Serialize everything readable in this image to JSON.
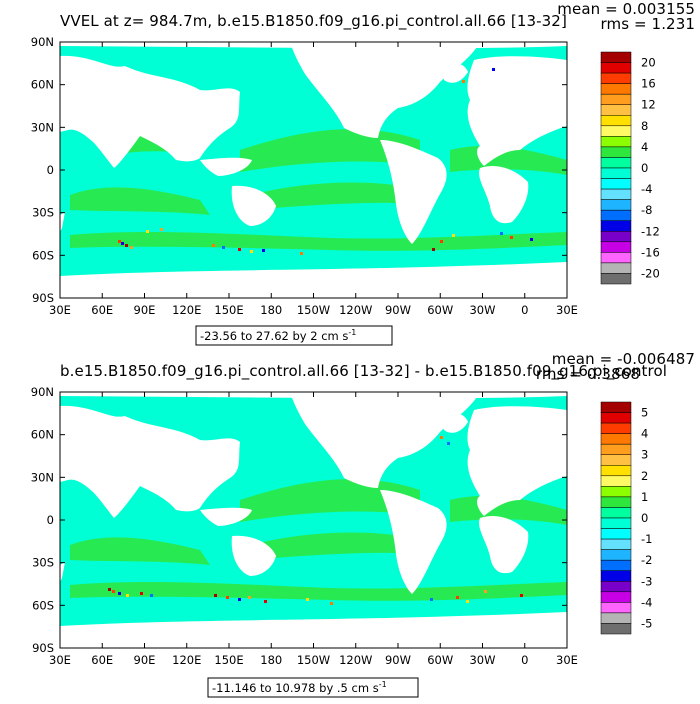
{
  "chart_data": [
    {
      "type": "heatmap",
      "title": "VVEL at z= 984.7m, b.e15.B1850.f09_g16.pi_control.all.66 [13-32]",
      "stats": {
        "mean": "mean = 0.003155",
        "rms": "rms = 1.231"
      },
      "range_label": "-23.56 to 27.62 by 2 cm s",
      "range_unit_exp": "-1",
      "x_ticks": [
        "30E",
        "60E",
        "90E",
        "120E",
        "150E",
        "180",
        "150W",
        "120W",
        "90W",
        "60W",
        "30W",
        "0",
        "30E"
      ],
      "y_ticks": [
        "90N",
        "60N",
        "30N",
        "0",
        "30S",
        "60S",
        "90S"
      ],
      "colorbar": {
        "labels": [
          "20",
          "16",
          "12",
          "8",
          "4",
          "0",
          "-4",
          "-8",
          "-12",
          "-16",
          "-20"
        ],
        "colors": [
          "#a50000",
          "#e10000",
          "#ff3c00",
          "#ff7800",
          "#ff9e1e",
          "#ffc043",
          "#ffe000",
          "#fffa64",
          "#8cff00",
          "#2ee63c",
          "#00ff9e",
          "#00ffd4",
          "#00ffff",
          "#64e1ff",
          "#1eb4ff",
          "#006eff",
          "#0000e6",
          "#7800c8",
          "#c800e6",
          "#ff64ff",
          "#b4b4b4",
          "#6e6e6e"
        ]
      },
      "fill": {
        "land": "#ffffff",
        "ocean_dominant": "#00ffd4",
        "ocean_secondary": "#2ee63c"
      }
    },
    {
      "type": "heatmap",
      "title": "b.e15.B1850.f09_g16.pi_control.all.66 [13-32] - b.e15.B1850.f09_g16.pi_control",
      "stats": {
        "mean": "mean = -0.006487",
        "rms": "rms = 0.3868"
      },
      "range_label": "-11.146 to 10.978 by .5 cm s",
      "range_unit_exp": "-1",
      "x_ticks": [
        "30E",
        "60E",
        "90E",
        "120E",
        "150E",
        "180",
        "150W",
        "120W",
        "90W",
        "60W",
        "30W",
        "0",
        "30E"
      ],
      "y_ticks": [
        "90N",
        "60N",
        "30N",
        "0",
        "30S",
        "60S",
        "90S"
      ],
      "colorbar": {
        "labels": [
          "5",
          "4",
          "3",
          "2",
          "1",
          "0",
          "-1",
          "-2",
          "-3",
          "-4",
          "-5"
        ],
        "colors": [
          "#a50000",
          "#e10000",
          "#ff3c00",
          "#ff7800",
          "#ff9e1e",
          "#ffc043",
          "#ffe000",
          "#fffa64",
          "#8cff00",
          "#2ee63c",
          "#00ff9e",
          "#00ffd4",
          "#00ffff",
          "#64e1ff",
          "#1eb4ff",
          "#006eff",
          "#0000e6",
          "#7800c8",
          "#c800e6",
          "#ff64ff",
          "#b4b4b4",
          "#6e6e6e"
        ]
      },
      "fill": {
        "land": "#ffffff",
        "ocean_dominant": "#00ffd4",
        "ocean_secondary": "#2ee63c"
      }
    }
  ]
}
